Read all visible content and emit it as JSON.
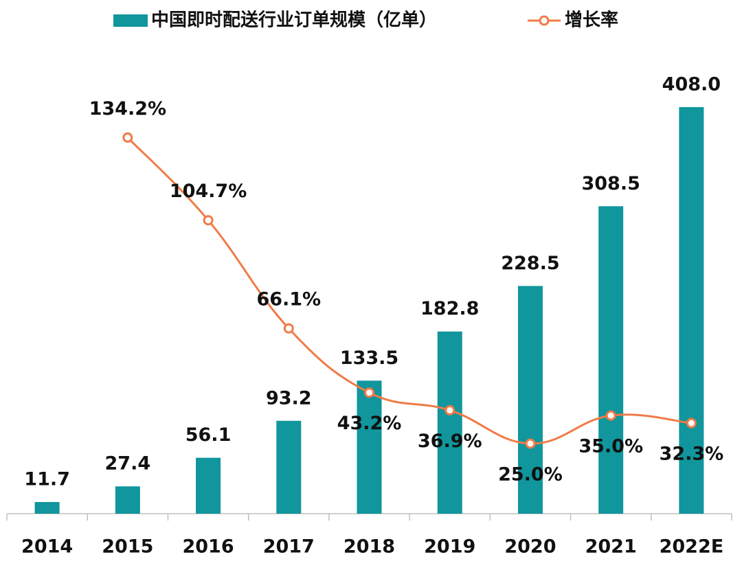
{
  "chart_data": {
    "type": "bar-line",
    "categories": [
      "2014",
      "2015",
      "2016",
      "2017",
      "2018",
      "2019",
      "2020",
      "2021",
      "2022E"
    ],
    "series": [
      {
        "name": "中国即时配送行业订单规模（亿单）",
        "type": "bar",
        "color": "#10969c",
        "values": [
          11.7,
          27.4,
          56.1,
          93.2,
          133.5,
          182.8,
          228.5,
          308.5,
          408.0
        ],
        "value_labels": [
          "11.7",
          "27.4",
          "56.1",
          "93.2",
          "133.5",
          "182.8",
          "228.5",
          "308.5",
          "408.0"
        ]
      },
      {
        "name": "增长率",
        "type": "line",
        "axis": "y2",
        "color": "#f07b47",
        "values": [
          null,
          134.2,
          104.7,
          66.1,
          43.2,
          36.9,
          25.0,
          35.0,
          32.3
        ],
        "value_labels": [
          null,
          "134.2%",
          "104.7%",
          "66.1%",
          "43.2%",
          "36.9%",
          "25.0%",
          "35.0%",
          "32.3%"
        ]
      }
    ],
    "ylim": [
      0,
      450
    ],
    "y2lim": [
      0,
      160
    ]
  }
}
